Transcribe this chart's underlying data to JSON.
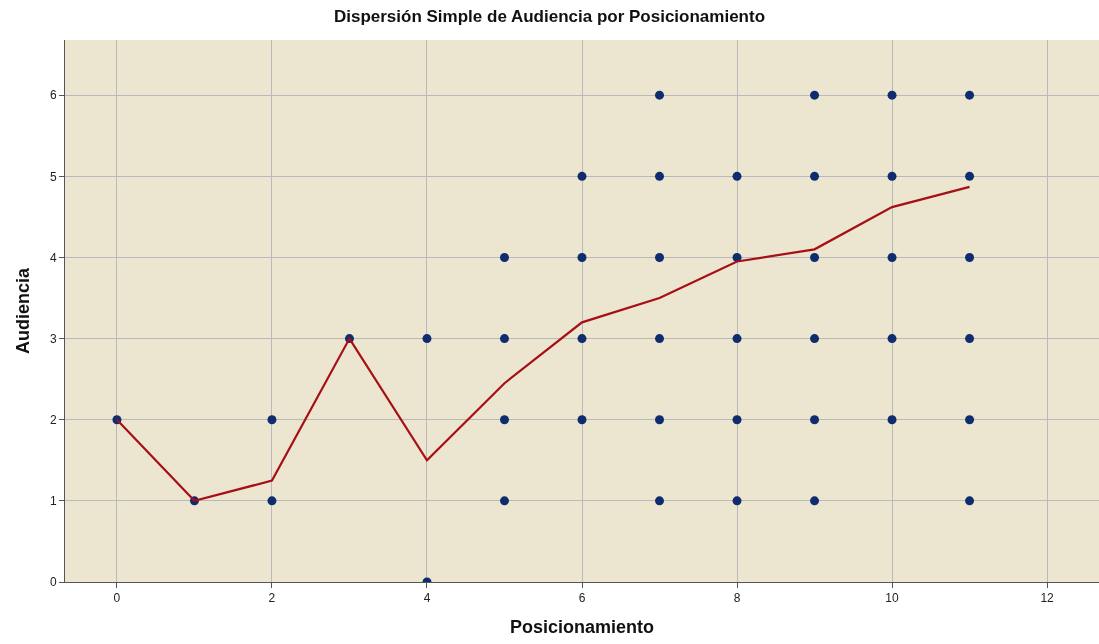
{
  "chart_data": {
    "type": "scatter",
    "title": "Dispersión Simple de Audiencia por Posicionamiento",
    "xlabel": "Posicionamiento",
    "ylabel": "Audiencia",
    "xlim": [
      -0.67,
      12.67
    ],
    "ylim": [
      0,
      6.68
    ],
    "xticks": [
      0,
      2,
      4,
      6,
      8,
      10,
      12
    ],
    "yticks": [
      0,
      1,
      2,
      3,
      4,
      5,
      6
    ],
    "grid": true,
    "marker": "circle",
    "series": [
      {
        "color": "#0f2c6e",
        "x": [
          0,
          1,
          2,
          2,
          3,
          4,
          4,
          5,
          5,
          5,
          5,
          6,
          6,
          6,
          6,
          7,
          7,
          7,
          7,
          7,
          7,
          8,
          8,
          8,
          8,
          8,
          9,
          9,
          9,
          9,
          9,
          9,
          10,
          10,
          10,
          10,
          10,
          11,
          11,
          11,
          11,
          11,
          11
        ],
        "values": [
          2,
          1,
          1,
          2,
          3,
          0,
          3,
          1,
          2,
          3,
          4,
          2,
          3,
          4,
          5,
          1,
          2,
          3,
          4,
          5,
          6,
          1,
          2,
          3,
          4,
          5,
          1,
          2,
          3,
          4,
          5,
          6,
          2,
          3,
          4,
          5,
          6,
          1,
          2,
          3,
          4,
          5,
          6
        ]
      },
      {
        "type": "line",
        "color": "#a50f15",
        "marker": "none",
        "line_style": "solid",
        "x": [
          0,
          1,
          2,
          3,
          4,
          5,
          6,
          7,
          8,
          9,
          10,
          11
        ],
        "values": [
          2,
          1,
          1.25,
          3,
          1.5,
          2.45,
          3.2,
          3.5,
          3.95,
          4.1,
          4.62,
          4.87
        ]
      }
    ]
  }
}
